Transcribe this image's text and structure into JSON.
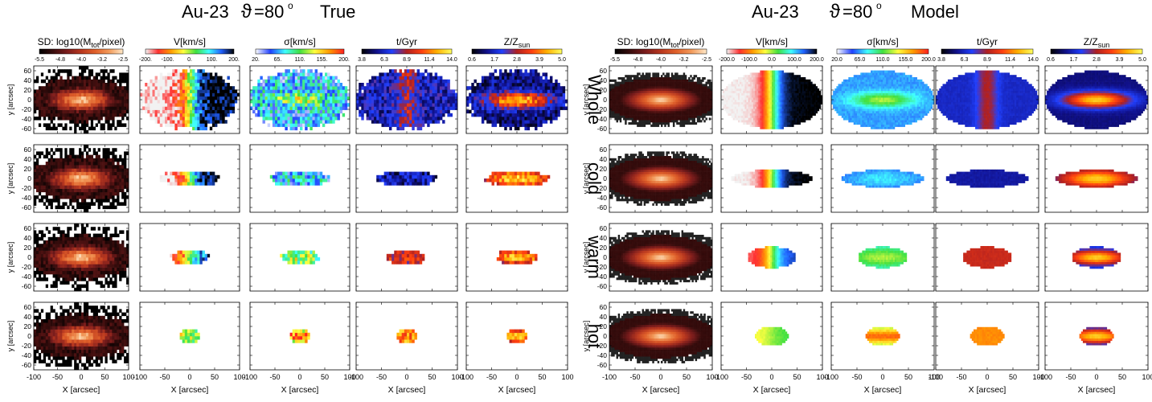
{
  "figure": {
    "left_title": {
      "name": "Au-23",
      "angle_sym": "ϑ",
      "angle_val": "=80",
      "deg": "o",
      "label": "True"
    },
    "right_title": {
      "name": "Au-23",
      "angle_sym": "ϑ",
      "angle_val": "=80",
      "deg": "o",
      "label": "Model"
    }
  },
  "chart_data": {
    "type": "heatmap",
    "title_left": "Au-23 ϑ=80o True",
    "title_right": "Au-23 ϑ=80o Model",
    "rows": [
      "Whole",
      "cold",
      "warm",
      "hot"
    ],
    "xlabel": "X [arcsec]",
    "ylabel": "y [arcsec]",
    "xlim": [
      -100,
      100
    ],
    "ylim": [
      -70,
      70
    ],
    "x_ticks": [
      "-100",
      "-50",
      "0",
      "50",
      "100"
    ],
    "x_ticks_inner": [
      "-100",
      "-50",
      "0",
      "50",
      "100"
    ],
    "y_ticks": [
      "60",
      "40",
      "20",
      "0",
      "-20",
      "-40",
      "-60"
    ],
    "columns": [
      {
        "key": "sd",
        "label_main": "SD: log10(M",
        "label_sub": "tot",
        "label_end": "/pixel)",
        "ticks_true": [
          "-5.5",
          "-4.8",
          "-4.0",
          "-3.2",
          "-2.5"
        ],
        "ticks_model": [
          "-5.5",
          "-4.8",
          "-4.0",
          "-3.2",
          "-2.5"
        ],
        "cmap": [
          "#000000",
          "#3a0d0d",
          "#7a1c1c",
          "#b8371f",
          "#e0602a",
          "#f29a5a",
          "#ffe8c8"
        ]
      },
      {
        "key": "v",
        "label_main": "V[km/s]",
        "label_sub": "",
        "label_end": "",
        "ticks_true": [
          "-200.",
          "-100.",
          "0.",
          "100.",
          "200."
        ],
        "ticks_model": [
          "-200.0",
          "-100.0",
          "0.0",
          "100.0",
          "200.0"
        ],
        "cmap": [
          "#f2f2f2",
          "#ff3030",
          "#ff9a00",
          "#ffff40",
          "#40e040",
          "#40ffff",
          "#2060ff",
          "#000000"
        ]
      },
      {
        "key": "sigma",
        "label_main": "σ[km/s]",
        "label_sub": "",
        "label_end": "",
        "ticks_true": [
          "20.",
          "65.",
          "110.",
          "155.",
          "200."
        ],
        "ticks_model": [
          "20.0",
          "65.0",
          "110.0",
          "155.0",
          "200.0"
        ],
        "cmap": [
          "#ffffff",
          "#2040ff",
          "#40ffff",
          "#40e040",
          "#ffff40",
          "#ff9a00",
          "#ff2020"
        ]
      },
      {
        "key": "age",
        "label_main": "t/Gyr",
        "label_sub": "",
        "label_end": "",
        "ticks_true": [
          "3.8",
          "6.3",
          "8.9",
          "11.4",
          "14.0"
        ],
        "ticks_model": [
          "3.8",
          "6.3",
          "8.9",
          "11.4",
          "14.0"
        ],
        "cmap": [
          "#000000",
          "#10108a",
          "#2040ff",
          "#b02020",
          "#ff4010",
          "#ffb000",
          "#ffff60"
        ]
      },
      {
        "key": "z",
        "label_main": "Z/Z",
        "label_sub": "sun",
        "label_end": "",
        "ticks_true": [
          "0.6",
          "1.7",
          "2.8",
          "3.9",
          "5.0"
        ],
        "ticks_model": [
          "0.6",
          "1.7",
          "2.8",
          "3.9",
          "5.0"
        ],
        "cmap": [
          "#000000",
          "#10108a",
          "#2040ff",
          "#b02020",
          "#ff4010",
          "#ffb000",
          "#ffff60"
        ]
      }
    ],
    "panel_structure": {
      "sd": {
        "whole": [
          110,
          45
        ],
        "cold": [
          110,
          45
        ],
        "warm": [
          110,
          45
        ],
        "hot": [
          110,
          45
        ]
      },
      "extent_true": {
        "whole": [
          100,
          60
        ],
        "cold": [
          60,
          16
        ],
        "warm": [
          38,
          16
        ],
        "hot": [
          20,
          16
        ]
      },
      "extent_model": {
        "whole": [
          100,
          60
        ],
        "cold": [
          80,
          18
        ],
        "warm": [
          48,
          22
        ],
        "hot": [
          32,
          20
        ]
      }
    }
  }
}
